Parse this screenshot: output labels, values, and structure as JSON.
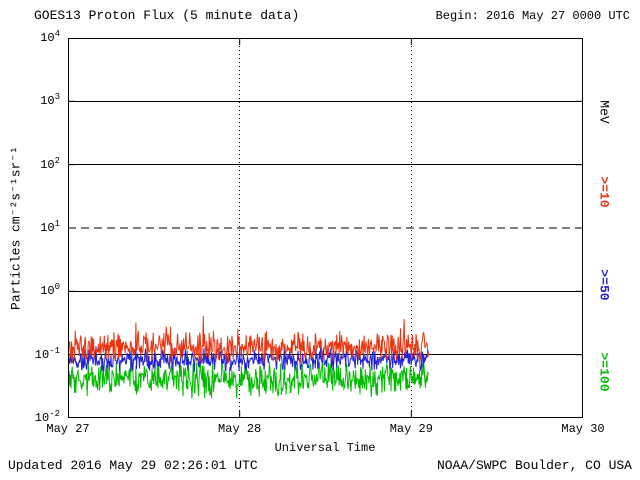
{
  "header": {
    "title": "GOES13 Proton Flux (5 minute data)",
    "begin_label": "Begin: 2016 May 27 0000 UTC"
  },
  "footer": {
    "updated": "Updated 2016 May 29 02:26:01 UTC",
    "source": "NOAA/SWPC Boulder, CO USA"
  },
  "chart_data": {
    "type": "line",
    "title": "GOES13 Proton Flux (5 minute data)",
    "xlabel": "Universal Time",
    "ylabel": "Particles cm⁻²s⁻¹sr⁻¹",
    "x_ticks": [
      "May 27",
      "May 28",
      "May 29",
      "May 30"
    ],
    "x_tick_days": [
      0,
      1,
      2,
      3
    ],
    "x_range_days": [
      0,
      3
    ],
    "y_scale": "log10",
    "y_log_range": [
      -2,
      4
    ],
    "y_tick_exponents": [
      4,
      3,
      2,
      1,
      0,
      -1,
      -2
    ],
    "gridlines": {
      "horizontal_solid_exponents": [
        3,
        2,
        0,
        -1
      ],
      "horizontal_dashed_exponents": [
        1
      ],
      "vertical_dotted_days": [
        1,
        2
      ]
    },
    "legend": {
      "unit_label": "MeV",
      "position": "right-rotated",
      "entries": [
        {
          "label": ">=10",
          "color": "#e83410"
        },
        {
          "label": ">=50",
          "color": "#2222d2"
        },
        {
          "label": ">=100",
          "color": "#00bb00"
        }
      ]
    },
    "data_start_day": 0.0,
    "data_end_day": 2.1,
    "cadence_minutes": 5,
    "series": [
      {
        "name": ">=10 MeV",
        "color": "#e83410",
        "approx_flux_range": [
          0.07,
          0.3
        ],
        "log10_center": -0.88,
        "log10_half_range": 0.28,
        "spike_prob": 0.05,
        "spike_log10": 0.3,
        "seed": 101
      },
      {
        "name": ">=50 MeV",
        "color": "#2222d2",
        "approx_flux_range": [
          0.05,
          0.13
        ],
        "log10_center": -1.08,
        "log10_half_range": 0.22,
        "spike_prob": 0.02,
        "spike_log10": 0.12,
        "seed": 202
      },
      {
        "name": ">=100 MeV",
        "color": "#00bb00",
        "approx_flux_range": [
          0.02,
          0.09
        ],
        "log10_center": -1.38,
        "log10_half_range": 0.33,
        "spike_prob": 0.03,
        "spike_log10": 0.15,
        "seed": 303
      }
    ]
  }
}
